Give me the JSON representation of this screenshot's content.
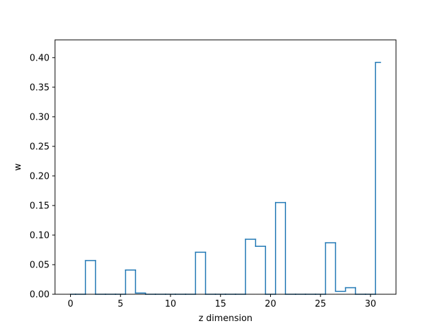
{
  "chart_data": {
    "type": "step",
    "title": "",
    "xlabel": "z dimension",
    "ylabel": "w",
    "xlim": [
      -1.55,
      32.55
    ],
    "ylim": [
      0.0,
      0.43
    ],
    "xticks": [
      0,
      5,
      10,
      15,
      20,
      25,
      30
    ],
    "xtick_labels": [
      "0",
      "5",
      "10",
      "15",
      "20",
      "25",
      "30"
    ],
    "yticks": [
      0.0,
      0.05,
      0.1,
      0.15,
      0.2,
      0.25,
      0.3,
      0.35,
      0.4
    ],
    "ytick_labels": [
      "0.00",
      "0.05",
      "0.10",
      "0.15",
      "0.20",
      "0.25",
      "0.30",
      "0.35",
      "0.40"
    ],
    "grid": false,
    "legend": false,
    "series": [
      {
        "color": "#1f77b4",
        "step_where": "mid",
        "x": [
          0,
          1,
          2,
          3,
          4,
          5,
          6,
          7,
          8,
          9,
          10,
          11,
          12,
          13,
          14,
          15,
          16,
          17,
          18,
          19,
          20,
          21,
          22,
          23,
          24,
          25,
          26,
          27,
          28,
          29,
          30,
          31
        ],
        "values": [
          0.0,
          0.0,
          0.057,
          0.0,
          0.0,
          0.0,
          0.041,
          0.002,
          0.0,
          0.0,
          0.0,
          0.0,
          0.0,
          0.071,
          0.0,
          0.0,
          0.0,
          0.0,
          0.093,
          0.081,
          0.0,
          0.155,
          0.0,
          0.0,
          0.0,
          0.0,
          0.087,
          0.005,
          0.011,
          0.0,
          0.0,
          0.392
        ]
      }
    ]
  }
}
